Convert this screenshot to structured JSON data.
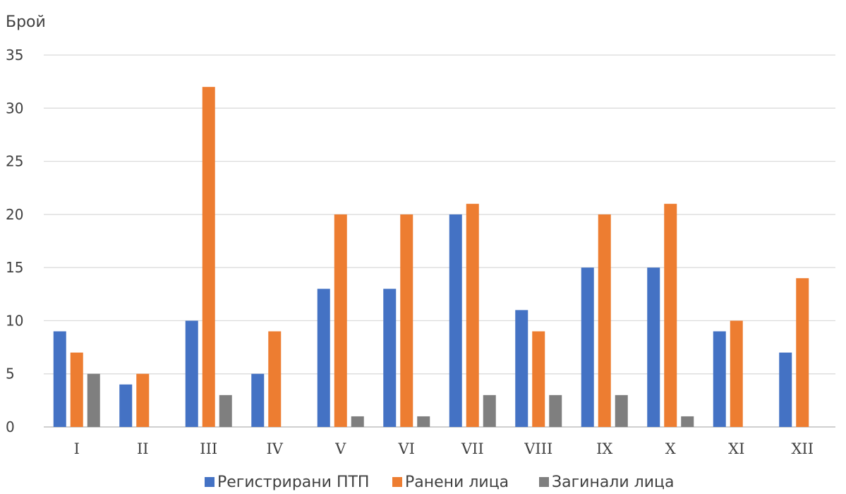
{
  "chart_data": {
    "type": "bar",
    "ylabel": "Брой",
    "xlabel": "",
    "ylim": [
      0,
      35
    ],
    "yticks": [
      0,
      5,
      10,
      15,
      20,
      25,
      30,
      35
    ],
    "grid": true,
    "legend_position": "bottom",
    "categories": [
      "I",
      "II",
      "III",
      "IV",
      "V",
      "VI",
      "VII",
      "VIII",
      "IX",
      "X",
      "XI",
      "XII"
    ],
    "series": [
      {
        "name": "Регистрирани ПТП",
        "color": "#4472C4",
        "values": [
          9,
          4,
          10,
          5,
          13,
          13,
          20,
          11,
          15,
          15,
          9,
          7
        ]
      },
      {
        "name": "Ранени лица",
        "color": "#ED7D31",
        "values": [
          7,
          5,
          32,
          9,
          20,
          20,
          21,
          9,
          20,
          21,
          10,
          14
        ]
      },
      {
        "name": "Загинали лица",
        "color": "#7F7F7F",
        "values": [
          5,
          0,
          3,
          0,
          1,
          1,
          3,
          3,
          3,
          1,
          0,
          0
        ]
      }
    ]
  }
}
